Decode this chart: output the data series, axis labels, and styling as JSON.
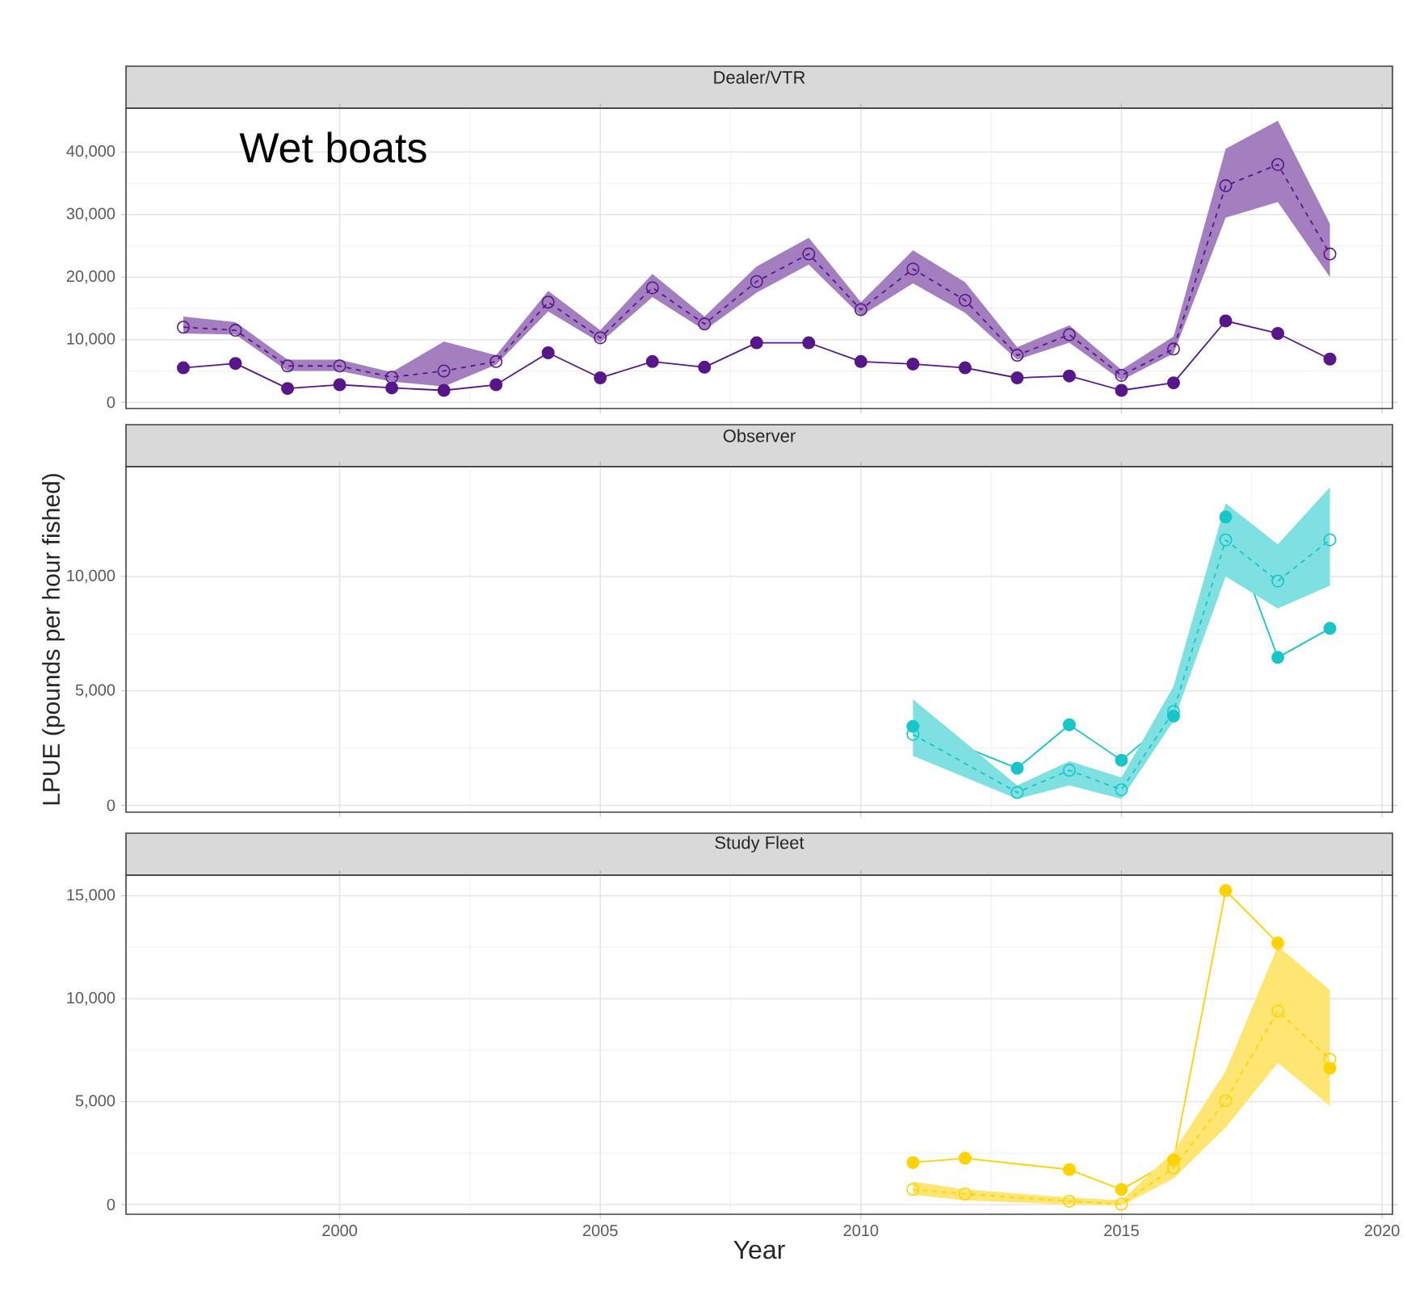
{
  "chart_data": [
    {
      "type": "line",
      "title": "Dealer/VTR",
      "annotations": [
        "Wet boats"
      ],
      "xlim": [
        1995.9,
        2020.2
      ],
      "ylim": [
        -1000,
        47000
      ],
      "xticks": [
        2000,
        2005,
        2010,
        2015,
        2020
      ],
      "yticks": [
        0,
        {
          "value": 10000,
          "label": "10,000"
        },
        {
          "value": 20000,
          "label": "20,000"
        },
        {
          "value": 30000,
          "label": "30,000"
        },
        {
          "value": 40000,
          "label": "40,000"
        }
      ],
      "tick_labels": "y",
      "grid": true,
      "marker": "circle",
      "x": [
        1997,
        1998,
        1999,
        2000,
        2001,
        2002,
        2003,
        2004,
        2005,
        2006,
        2007,
        2008,
        2009,
        2010,
        2011,
        2012,
        2013,
        2014,
        2015,
        2016,
        2017,
        2018,
        2019
      ],
      "series": [
        {
          "color": "#58168b",
          "line_style": "solid",
          "values": [
            5500,
            6200,
            2200,
            2800,
            2300,
            1900,
            2800,
            7900,
            3900,
            6500,
            5600,
            9500,
            9500,
            6500,
            6100,
            5500,
            3900,
            4200,
            1900,
            3100,
            13000,
            11000,
            6900
          ]
        },
        {
          "color": "#58168b",
          "line_style": "dashed",
          "values": [
            12000,
            11500,
            5800,
            5800,
            4000,
            5000,
            6500,
            16000,
            10300,
            18300,
            12500,
            19300,
            23700,
            14800,
            21300,
            16300,
            7500,
            10800,
            4300,
            8500,
            34600,
            38000,
            23700
          ],
          "lower": [
            11000,
            10800,
            5000,
            5000,
            3300,
            2500,
            6000,
            14500,
            9500,
            16800,
            11500,
            17500,
            22000,
            13800,
            19000,
            14300,
            6800,
            9500,
            3500,
            7800,
            29500,
            32000,
            20000
          ],
          "upper": [
            13700,
            12800,
            6800,
            6800,
            4800,
            9700,
            7500,
            17800,
            11500,
            20500,
            13700,
            21700,
            26300,
            16000,
            24300,
            19200,
            8800,
            12300,
            5200,
            10500,
            40500,
            45000,
            28500
          ]
        }
      ]
    },
    {
      "type": "line",
      "title": "Observer",
      "ylabel": "LPUE (pounds per hour fished)",
      "xlim": [
        1995.9,
        2020.2
      ],
      "ylim": [
        -300,
        14800
      ],
      "xticks": [
        2000,
        2005,
        2010,
        2015,
        2020
      ],
      "yticks": [
        0,
        {
          "value": 5000,
          "label": "5,000"
        },
        {
          "value": 10000,
          "label": "10,000"
        }
      ],
      "tick_labels": "y",
      "grid": true,
      "marker": "circle",
      "x": [
        2011,
        2013,
        2014,
        2015,
        2016,
        2017,
        2018,
        2019
      ],
      "series": [
        {
          "color": "#16c6c9",
          "line_style": "solid",
          "values": [
            3450,
            1620,
            3520,
            1970,
            3900,
            12600,
            6460,
            7730
          ]
        },
        {
          "color": "#16c6c9",
          "line_style": "dashed",
          "values": [
            3100,
            560,
            1530,
            680,
            4100,
            11600,
            9800,
            11600
          ],
          "lower": [
            2160,
            280,
            870,
            280,
            3690,
            10000,
            8600,
            9600
          ],
          "upper": [
            4630,
            870,
            1930,
            1220,
            5210,
            13200,
            11400,
            13900
          ]
        }
      ]
    },
    {
      "type": "line",
      "title": "Study Fleet",
      "xlabel": "Year",
      "xlim": [
        1995.9,
        2020.2
      ],
      "ylim": [
        -470,
        16000
      ],
      "xticks": [
        2000,
        2005,
        2010,
        2015,
        2020
      ],
      "yticks": [
        0,
        {
          "value": 5000,
          "label": "5,000"
        },
        {
          "value": 10000,
          "label": "10,000"
        },
        {
          "value": 15000,
          "label": "15,000"
        }
      ],
      "grid": true,
      "marker": "circle",
      "x": [
        2011,
        2012,
        2014,
        2015,
        2016,
        2017,
        2018,
        2019
      ],
      "series": [
        {
          "color": "#ffd200",
          "line_style": "solid",
          "values": [
            2040,
            2250,
            1700,
            730,
            2170,
            15250,
            12700,
            6620
          ]
        },
        {
          "color": "#ffd200",
          "line_style": "dashed",
          "values": [
            730,
            520,
            160,
            20,
            1780,
            5050,
            9400,
            7060
          ],
          "lower": [
            470,
            210,
            0,
            -50,
            1260,
            3740,
            6880,
            4790
          ],
          "upper": [
            1120,
            730,
            340,
            210,
            2570,
            6490,
            12560,
            10420
          ]
        }
      ]
    }
  ]
}
